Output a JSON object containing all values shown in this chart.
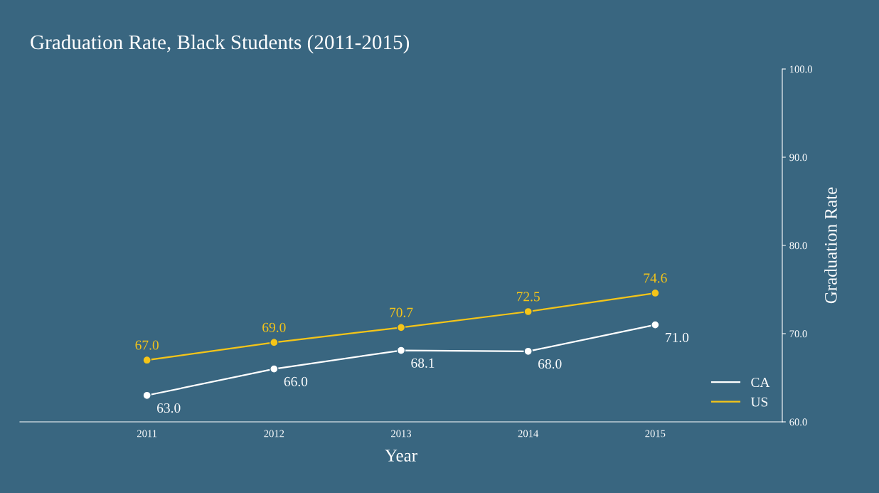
{
  "chart_data": {
    "type": "line",
    "title": "Graduation Rate, Black Students (2011-2015)",
    "xlabel": "Year",
    "ylabel": "Graduation Rate",
    "x": [
      2011,
      2012,
      2013,
      2014,
      2015
    ],
    "series": [
      {
        "name": "CA",
        "color": "#ffffff",
        "values": [
          63.0,
          66.0,
          68.1,
          68.0,
          71.0
        ],
        "value_labels": [
          "63.0",
          "66.0",
          "68.1",
          "68.0",
          "71.0"
        ]
      },
      {
        "name": "US",
        "color": "#f5c518",
        "values": [
          67.0,
          69.0,
          70.7,
          72.5,
          74.6
        ],
        "value_labels": [
          "67.0",
          "69.0",
          "70.7",
          "72.5",
          "74.6"
        ]
      }
    ],
    "xlim": [
      2010,
      2016
    ],
    "xticks": [
      2011,
      2012,
      2013,
      2014,
      2015
    ],
    "ylim": [
      60,
      100
    ],
    "yticks": [
      {
        "value": 60,
        "label": "60.0"
      },
      {
        "value": 70,
        "label": "70.0"
      },
      {
        "value": 80,
        "label": "80.0"
      },
      {
        "value": 90,
        "label": "90.0"
      },
      {
        "value": 100,
        "label": "100.0"
      }
    ],
    "grid": false,
    "legend": "bottom right",
    "marker": "circle",
    "line_style": "solid"
  }
}
